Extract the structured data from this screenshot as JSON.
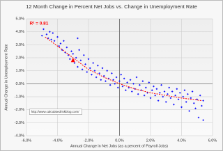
{
  "chart_data": {
    "type": "scatter",
    "title": "12 Month Change in Percent Net Jobs vs. Change in Unemployment Rate",
    "x_label": "Annual Change in Net Jobs (as a percent of Payroll Jobs)",
    "y_label": "Annual Change in Unemployment Rate",
    "annotations": [
      "R² = 0.81",
      "http://www.calculatedriskblog.com/"
    ],
    "xlim": [
      -6,
      6
    ],
    "ylim": [
      -4,
      5
    ],
    "grid": true,
    "xticks": [
      {
        "value": -6,
        "label": "-6.0%"
      },
      {
        "value": -4,
        "label": "-4.0%"
      },
      {
        "value": -2,
        "label": "-2.0%"
      },
      {
        "value": 0,
        "label": "0.0%"
      },
      {
        "value": 2,
        "label": "2.0%"
      },
      {
        "value": 4,
        "label": "4.0%"
      },
      {
        "value": 6,
        "label": "6.0%"
      }
    ],
    "yticks": [
      {
        "value": 5,
        "label": "5.0%"
      },
      {
        "value": 4,
        "label": "4.0%"
      },
      {
        "value": 3,
        "label": "3.0%"
      },
      {
        "value": 2,
        "label": "2.0%"
      },
      {
        "value": 1,
        "label": "1.0%"
      },
      {
        "value": 0,
        "label": "0.0%"
      },
      {
        "value": -1,
        "label": "-1.0%"
      },
      {
        "value": -2,
        "label": "-2.0%"
      },
      {
        "value": -3,
        "label": "-3.0%"
      },
      {
        "value": -4,
        "label": "-4.0%"
      }
    ],
    "series": [
      {
        "color": "#1a1aff",
        "marker": "diamond",
        "x": [
          -5.0,
          -4.9,
          -4.7,
          -4.6,
          -4.5,
          -4.4,
          -4.3,
          -4.2,
          -4.0,
          -3.9,
          -3.8,
          -3.7,
          -3.6,
          -3.5,
          -3.4,
          -3.3,
          -3.2,
          -3.1,
          -3.0,
          -2.9,
          -2.8,
          -2.7,
          -2.7,
          -2.6,
          -2.5,
          -2.4,
          -2.3,
          -2.2,
          -2.1,
          -2.0,
          -1.9,
          -1.8,
          -1.7,
          -1.6,
          -1.5,
          -1.4,
          -1.3,
          -1.2,
          -1.1,
          -1.0,
          -0.9,
          -0.8,
          -0.7,
          -0.6,
          -0.5,
          -0.4,
          -0.3,
          -0.2,
          -0.1,
          0.0,
          0.1,
          0.2,
          0.3,
          0.4,
          0.5,
          0.6,
          0.7,
          0.8,
          0.9,
          1.0,
          1.1,
          1.2,
          1.3,
          1.4,
          1.5,
          1.6,
          1.7,
          1.8,
          1.9,
          2.0,
          2.1,
          2.2,
          2.3,
          2.4,
          2.5,
          2.6,
          2.7,
          2.8,
          2.9,
          3.0,
          3.1,
          3.2,
          3.3,
          3.4,
          3.5,
          3.6,
          3.7,
          3.8,
          3.9,
          4.0,
          4.1,
          4.2,
          4.3,
          4.4,
          4.5,
          4.6,
          4.7,
          4.8,
          4.9,
          5.0,
          5.1,
          5.2,
          5.3,
          5.4,
          5.4
        ],
        "y": [
          3.7,
          4.2,
          3.8,
          3.5,
          4.0,
          3.4,
          3.9,
          3.3,
          3.6,
          2.9,
          3.1,
          2.6,
          3.3,
          2.4,
          2.8,
          2.2,
          1.9,
          2.5,
          2.3,
          1.6,
          2.0,
          3.5,
          1.3,
          2.6,
          1.8,
          1.1,
          2.2,
          1.5,
          0.9,
          1.9,
          1.2,
          0.7,
          1.6,
          1.0,
          0.5,
          1.4,
          0.8,
          0.3,
          1.2,
          0.6,
          0.2,
          1.0,
          0.4,
          -0.1,
          0.8,
          0.3,
          0.0,
          0.5,
          -0.3,
          0.2,
          0.7,
          -0.2,
          0.4,
          -0.5,
          0.1,
          -0.3,
          0.3,
          -0.6,
          0.0,
          -0.4,
          0.5,
          -0.8,
          -0.1,
          -0.5,
          0.2,
          -0.9,
          -0.3,
          -0.7,
          0.1,
          -1.1,
          -0.5,
          -0.2,
          -0.9,
          -0.4,
          -1.3,
          -0.7,
          -0.1,
          -1.0,
          -0.6,
          -1.4,
          -0.8,
          -0.3,
          -1.1,
          -0.6,
          -1.6,
          -0.9,
          -0.4,
          -1.2,
          -0.7,
          -1.8,
          -1.0,
          -0.5,
          -1.4,
          -0.8,
          -2.1,
          -1.1,
          -0.6,
          -1.5,
          -1.9,
          -1.2,
          -2.6,
          -0.9,
          -1.7,
          -1.3,
          -2.8
        ]
      },
      {
        "color": "#ff0000",
        "marker": "triangle",
        "x": [
          -3.0
        ],
        "y": [
          1.8
        ]
      }
    ],
    "trendline": {
      "color": "#ff0000",
      "x": [
        -4.8,
        -4,
        -3,
        -2,
        -1,
        0,
        1,
        2,
        3,
        4,
        5.3
      ],
      "y": [
        3.6,
        2.9,
        2.0,
        1.1,
        0.5,
        0.0,
        -0.4,
        -0.7,
        -0.9,
        -1.1,
        -1.3
      ]
    }
  }
}
